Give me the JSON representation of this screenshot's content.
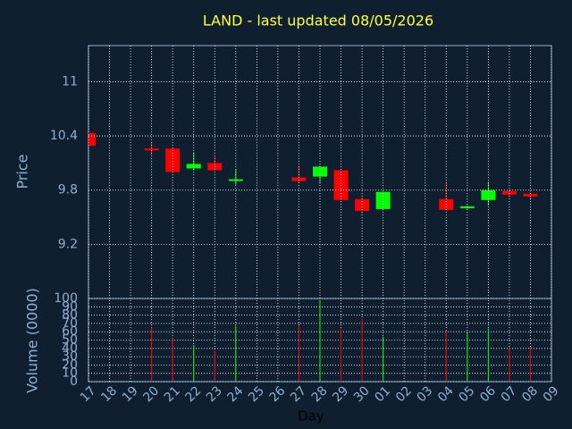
{
  "chart_data": {
    "type": "candlestick",
    "title": "LAND - last updated 08/05/2026",
    "y_label": "Price",
    "volume_label": "Volume (0000)",
    "x_label": "Day",
    "categories": [
      "17",
      "18",
      "19",
      "20",
      "21",
      "22",
      "23",
      "24",
      "25",
      "26",
      "27",
      "28",
      "29",
      "30",
      "01",
      "02",
      "03",
      "04",
      "05",
      "06",
      "07",
      "08",
      "09"
    ],
    "open": [
      10.43,
      null,
      null,
      10.26,
      10.26,
      10.04,
      10.1,
      9.91,
      null,
      null,
      9.94,
      9.95,
      10.02,
      9.7,
      9.59,
      null,
      null,
      9.7,
      9.61,
      9.69,
      9.79,
      9.76,
      null
    ],
    "high": [
      10.45,
      null,
      null,
      10.33,
      10.27,
      10.22,
      10.18,
      10.03,
      null,
      null,
      10.07,
      10.06,
      10.02,
      9.72,
      9.78,
      null,
      null,
      9.89,
      9.63,
      9.89,
      9.8,
      9.77,
      null
    ],
    "low": [
      10.29,
      null,
      null,
      10.19,
      10.0,
      10.02,
      10.02,
      9.86,
      null,
      null,
      9.88,
      9.87,
      9.69,
      9.54,
      9.59,
      null,
      null,
      9.58,
      9.59,
      9.63,
      9.72,
      9.69,
      null
    ],
    "close": [
      10.29,
      null,
      null,
      10.25,
      10.0,
      10.09,
      10.02,
      9.92,
      null,
      null,
      9.9,
      10.06,
      9.69,
      9.57,
      9.78,
      null,
      null,
      9.58,
      9.62,
      9.8,
      9.75,
      9.73,
      null
    ],
    "volume": [
      null,
      null,
      null,
      65,
      53,
      44,
      37,
      67,
      null,
      null,
      68,
      97,
      64,
      75,
      54,
      null,
      null,
      61,
      58,
      64,
      40,
      42,
      null
    ],
    "up_color": "#00ff00",
    "down_color": "#ff0000",
    "ylim": [
      8.6,
      11.4
    ],
    "yticks": [
      9.2,
      9.8,
      10.4,
      11
    ],
    "vlim": [
      0,
      100
    ],
    "vticks": [
      0,
      10,
      20,
      30,
      40,
      50,
      60,
      70,
      80,
      90,
      100
    ],
    "grid": true
  }
}
